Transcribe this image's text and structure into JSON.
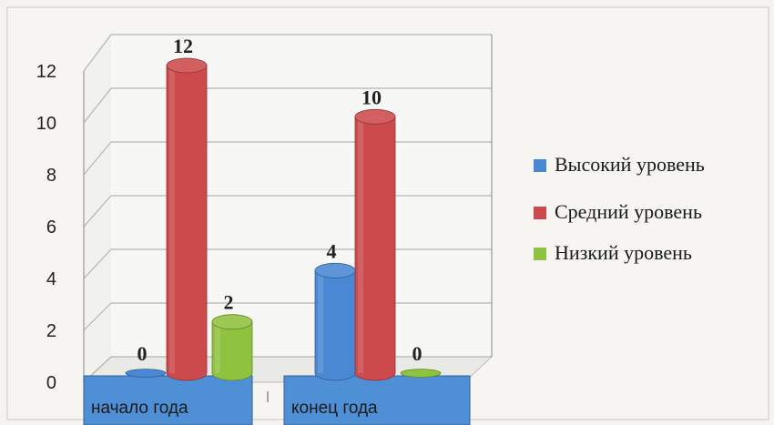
{
  "chart_data": {
    "type": "bar",
    "categories": [
      "начало года",
      "конец года"
    ],
    "series": [
      {
        "name": "Высокий уровень",
        "color": "#4a88d4",
        "values": [
          0,
          4
        ]
      },
      {
        "name": "Средний уровень",
        "color": "#cc4a4c",
        "values": [
          12,
          10
        ]
      },
      {
        "name": "Низкий уровень",
        "color": "#8ec23f",
        "values": [
          2,
          0
        ]
      }
    ],
    "data_labels": [
      [
        "0",
        "4"
      ],
      [
        "12",
        "10"
      ],
      [
        "2",
        "0"
      ]
    ],
    "y_ticks": [
      "0",
      "2",
      "4",
      "6",
      "8",
      "10",
      "12"
    ],
    "ylim": [
      0,
      12
    ],
    "grid": true,
    "legend_position": "right",
    "title": "",
    "xlabel": "",
    "ylabel": "",
    "category_box_color": "#4f8fd6"
  }
}
